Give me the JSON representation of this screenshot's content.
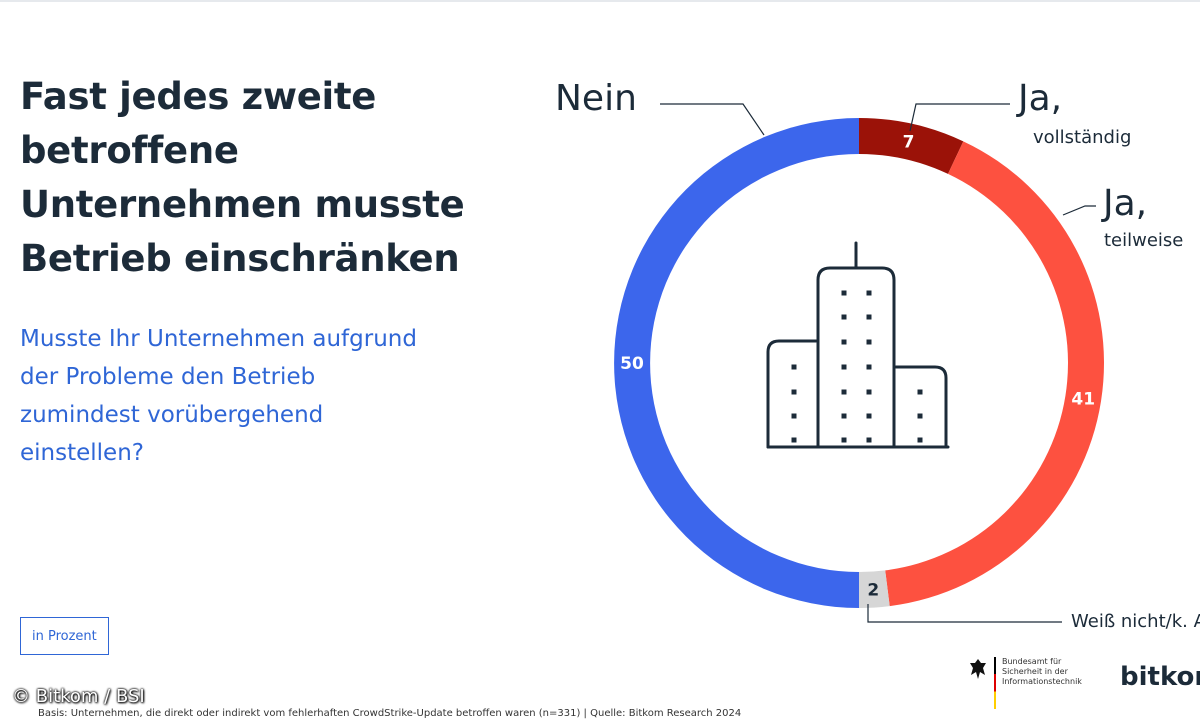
{
  "headline": "Fast jedes zweite betroffene Unternehmen musste Betrieb einschränken",
  "question": "Musste Ihr Unternehmen aufgrund der Probleme den Betrieb zumindest vorübergehend einstellen?",
  "unit_label": "in Prozent",
  "footnote": "Basis: Unternehmen, die direkt oder indirekt vom fehlerhaften CrowdStrike-Update betroffen waren (n=331) | Quelle: Bitkom Research 2024",
  "copyright": "© Bitkom / BSI",
  "logos": {
    "bsi_text": "Bundesamt für Sicherheit in der Informationstechnik",
    "bitkom": "bitkom"
  },
  "chart_data": {
    "type": "pie",
    "variant": "donut",
    "unit": "Prozent",
    "center_icon": "building-icon",
    "slices": [
      {
        "key": "ja_vollstaendig",
        "label_main": "Ja,",
        "label_sub": "vollständig",
        "value": 7,
        "color": "#9b1208"
      },
      {
        "key": "ja_teilweise",
        "label_main": "Ja,",
        "label_sub": "teilweise",
        "value": 41,
        "color": "#fd5140"
      },
      {
        "key": "weiss_nicht",
        "label_main": "",
        "label_sub": "Weiß nicht/k. A.",
        "value": 2,
        "color": "#d6d6d6"
      },
      {
        "key": "nein",
        "label_main": "Nein",
        "label_sub": "",
        "value": 50,
        "color": "#3c66ec"
      }
    ]
  }
}
